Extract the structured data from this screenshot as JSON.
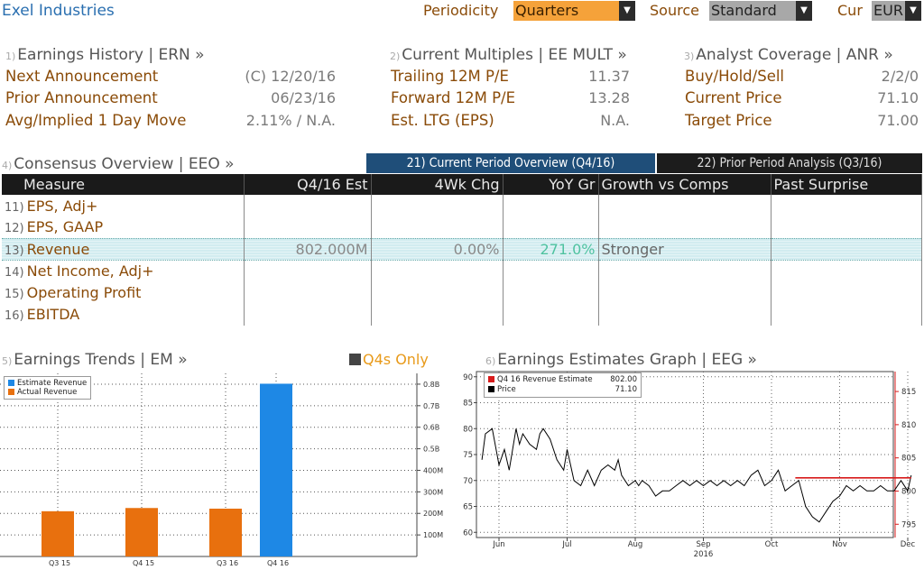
{
  "header": {
    "company": "Exel Industries",
    "periodicity_label": "Periodicity",
    "periodicity_value": "Quarters",
    "source_label": "Source",
    "source_value": "Standard",
    "cur_label": "Cur",
    "cur_value": "EUR"
  },
  "earnings_history": {
    "num": "1)",
    "title": "Earnings History | ERN »",
    "rows": [
      {
        "label": "Next Announcement",
        "value": "(C)  12/20/16"
      },
      {
        "label": "Prior Announcement",
        "value": "06/23/16"
      },
      {
        "label": "Avg/Implied 1 Day Move",
        "value": "2.11% / N.A."
      }
    ]
  },
  "current_multiples": {
    "num": "2)",
    "title": "Current Multiples | EE MULT »",
    "rows": [
      {
        "label": "Trailing 12M P/E",
        "value": "11.37"
      },
      {
        "label": "Forward 12M P/E",
        "value": "13.28"
      },
      {
        "label": "Est. LTG (EPS)",
        "value": "N.A."
      }
    ]
  },
  "analyst_coverage": {
    "num": "3)",
    "title": "Analyst Coverage | ANR »",
    "rows": [
      {
        "label": "Buy/Hold/Sell",
        "value": "2/2/0"
      },
      {
        "label": "Current Price",
        "value": "71.10"
      },
      {
        "label": "Target Price",
        "value": "71.00"
      }
    ]
  },
  "consensus": {
    "num": "4)",
    "title": "Consensus Overview | EEO »",
    "tab_current": "21) Current Period Overview (Q4/16)",
    "tab_prior": "22) Prior Period Analysis (Q3/16)",
    "columns": [
      "Measure",
      "Q4/16 Est",
      "4Wk Chg",
      "YoY Gr",
      "Growth vs Comps",
      "Past Surprise"
    ],
    "rows": [
      {
        "n": "11)",
        "measure": "EPS, Adj+",
        "est": "",
        "chg": "",
        "yoy": "",
        "comps": "",
        "surprise": ""
      },
      {
        "n": "12)",
        "measure": "EPS, GAAP",
        "est": "",
        "chg": "",
        "yoy": "",
        "comps": "",
        "surprise": ""
      },
      {
        "n": "13)",
        "measure": "Revenue",
        "est": "802.000M",
        "chg": "0.00%",
        "yoy": "271.0%",
        "comps": "Stronger",
        "surprise": ""
      },
      {
        "n": "14)",
        "measure": "Net Income, Adj+",
        "est": "",
        "chg": "",
        "yoy": "",
        "comps": "",
        "surprise": ""
      },
      {
        "n": "15)",
        "measure": "Operating Profit",
        "est": "",
        "chg": "",
        "yoy": "",
        "comps": "",
        "surprise": ""
      },
      {
        "n": "16)",
        "measure": "EBITDA",
        "est": "",
        "chg": "",
        "yoy": "",
        "comps": "",
        "surprise": ""
      }
    ]
  },
  "earnings_trends": {
    "num": "5)",
    "title": "Earnings Trends | EM »",
    "toggle": "Q4s Only"
  },
  "estimates_graph": {
    "num": "6)",
    "title": "Earnings Estimates Graph | EEG »"
  },
  "colors": {
    "estimate": "#1e88e5",
    "actual": "#e8700e",
    "price_line": "#000000",
    "estimate_line": "#d81b1b",
    "tab_active": "#1f4e79",
    "tab_inactive": "#1c1c1c",
    "dropdown_amber": "#f5a23a",
    "dropdown_grey": "#a8a8a8"
  },
  "chart_data": [
    {
      "type": "bar",
      "categories": [
        "Q3 15",
        "Q4 15",
        "Q3 16",
        "Q4 16"
      ],
      "series": [
        {
          "name": "Estimate Revenue",
          "values": [
            null,
            null,
            null,
            802
          ]
        },
        {
          "name": "Actual Revenue",
          "values": [
            210,
            225,
            222,
            null
          ]
        }
      ],
      "unit": "M",
      "ylim": [
        0,
        850
      ],
      "yticks": [
        "100M",
        "200M",
        "300M",
        "400M",
        "0.5B",
        "0.6B",
        "0.7B",
        "0.8B"
      ],
      "ytick_values": [
        100,
        200,
        300,
        400,
        500,
        600,
        700,
        800
      ],
      "grid": true,
      "legend": "top-left"
    },
    {
      "type": "line",
      "x_labels": [
        "Jun",
        "Jul",
        "Aug",
        "Sep",
        "Oct",
        "Nov",
        "Dec"
      ],
      "x_label_year": "2016",
      "x_positions": [
        0,
        1,
        2,
        3,
        4,
        5,
        6
      ],
      "yleft": {
        "ticks": [
          60,
          65,
          70,
          75,
          80,
          85,
          90
        ],
        "ylim": [
          59,
          91
        ]
      },
      "yright": {
        "ticks": [
          795,
          800,
          805,
          810,
          815
        ],
        "ylim": [
          793,
          818
        ]
      },
      "legend": "top-left",
      "legend_values": {
        "estimate_label": "Q4 16 Revenue Estimate",
        "estimate_value": "802.00",
        "price_label": "Price",
        "price_value": "71.10"
      },
      "series": [
        {
          "name": "Price",
          "axis": "left",
          "x": [
            -0.25,
            -0.2,
            -0.1,
            0,
            0.08,
            0.15,
            0.25,
            0.3,
            0.35,
            0.45,
            0.55,
            0.6,
            0.65,
            0.75,
            0.85,
            0.95,
            1.0,
            1.05,
            1.1,
            1.2,
            1.3,
            1.4,
            1.5,
            1.6,
            1.7,
            1.75,
            1.8,
            1.9,
            2.0,
            2.05,
            2.1,
            2.2,
            2.3,
            2.4,
            2.5,
            2.6,
            2.7,
            2.8,
            2.9,
            3.0,
            3.1,
            3.2,
            3.3,
            3.4,
            3.5,
            3.6,
            3.7,
            3.8,
            3.9,
            4.0,
            4.1,
            4.2,
            4.3,
            4.4,
            4.5,
            4.6,
            4.7,
            4.8,
            4.9,
            5.0,
            5.1,
            5.2,
            5.3,
            5.4,
            5.5,
            5.6,
            5.7,
            5.8,
            5.9,
            6.0,
            6.05
          ],
          "y": [
            74,
            79,
            80,
            73,
            76,
            72,
            80,
            77,
            79,
            77,
            76,
            79,
            80,
            78,
            74,
            72,
            76,
            73,
            70,
            69,
            72,
            69,
            72,
            73,
            72,
            74,
            71,
            69,
            70,
            69,
            70,
            69,
            67,
            68,
            68,
            69,
            70,
            69,
            70,
            69,
            70,
            69,
            70,
            69,
            70,
            69,
            71,
            72,
            69,
            70,
            72,
            68,
            69,
            70,
            65,
            63,
            62,
            64,
            66,
            67,
            69,
            68,
            69,
            68,
            68,
            69,
            68,
            68,
            70,
            68,
            71
          ],
          "color": "#000000"
        },
        {
          "name": "Q4 16 Revenue Estimate",
          "axis": "right",
          "x": [
            4.35,
            6.05
          ],
          "y": [
            802,
            802
          ],
          "color": "#d81b1b"
        }
      ]
    }
  ]
}
